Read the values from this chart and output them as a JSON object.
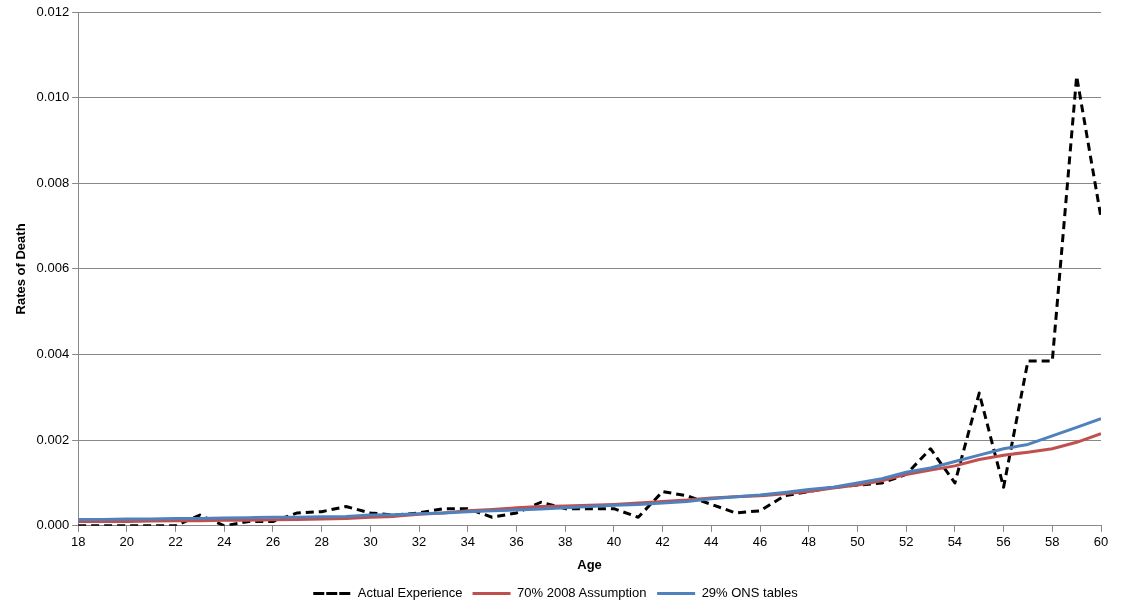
{
  "chart_data": {
    "type": "line",
    "xlabel": "Age",
    "ylabel": "Rates of Death",
    "x": [
      18,
      19,
      20,
      21,
      22,
      23,
      24,
      25,
      26,
      27,
      28,
      29,
      30,
      31,
      32,
      33,
      34,
      35,
      36,
      37,
      38,
      39,
      40,
      41,
      42,
      43,
      44,
      45,
      46,
      47,
      48,
      49,
      50,
      51,
      52,
      53,
      54,
      55,
      56,
      57,
      58,
      59,
      60
    ],
    "xlim": [
      18,
      60
    ],
    "xticks": [
      18,
      20,
      22,
      24,
      26,
      28,
      30,
      32,
      34,
      36,
      38,
      40,
      42,
      44,
      46,
      48,
      50,
      52,
      54,
      56,
      58,
      60
    ],
    "ylim": [
      0,
      0.012
    ],
    "yticks": [
      {
        "value": 0,
        "label": "0.000"
      },
      {
        "value": 0.002,
        "label": "0.002"
      },
      {
        "value": 0.004,
        "label": "0.004"
      },
      {
        "value": 0.006,
        "label": "0.006"
      },
      {
        "value": 0.008,
        "label": "0.008"
      },
      {
        "value": 0.01,
        "label": "0.010"
      },
      {
        "value": 0.012,
        "label": "0.012"
      }
    ],
    "grid": "y",
    "legend": "bottom",
    "marker": "none",
    "series": [
      {
        "name": "Actual Experience",
        "color": "#000000",
        "line_style": "dashed",
        "values": [
          0,
          0,
          0,
          0,
          0,
          0.00025,
          0,
          0.0001,
          0.0001,
          0.0003,
          0.00033,
          0.00045,
          0.0003,
          0.00025,
          0.0003,
          0.0004,
          0.0004,
          0.0002,
          0.0003,
          0.00055,
          0.0004,
          0.0004,
          0.0004,
          0.0002,
          0.0008,
          0.0007,
          0.0005,
          0.0003,
          0.00035,
          0.0007,
          0.0008,
          0.0009,
          0.00095,
          0.001,
          0.0012,
          0.0018,
          0.001,
          0.0031,
          0.0009,
          0.00385,
          0.00385,
          0.0105,
          0.0072
        ]
      },
      {
        "name": "70% 2008 Assumption",
        "color": "#c0504d",
        "line_style": "solid",
        "values": [
          0.0001,
          0.0001,
          0.0001,
          0.00011,
          0.00012,
          0.00012,
          0.00013,
          0.00013,
          0.00014,
          0.00015,
          0.00016,
          0.00017,
          0.0002,
          0.00022,
          0.00027,
          0.0003,
          0.00035,
          0.00038,
          0.00042,
          0.00045,
          0.00046,
          0.00048,
          0.0005,
          0.00053,
          0.00057,
          0.0006,
          0.00065,
          0.00068,
          0.0007,
          0.00075,
          0.0008,
          0.00088,
          0.00095,
          0.00105,
          0.0012,
          0.0013,
          0.0014,
          0.00155,
          0.00165,
          0.00172,
          0.0018,
          0.00195,
          0.00215
        ]
      },
      {
        "name": "29% ONS tables",
        "color": "#4f81bd",
        "line_style": "solid",
        "values": [
          0.00015,
          0.00015,
          0.00016,
          0.00016,
          0.00017,
          0.00017,
          0.00018,
          0.00019,
          0.0002,
          0.0002,
          0.00021,
          0.00022,
          0.00025,
          0.00026,
          0.00028,
          0.0003,
          0.00033,
          0.00035,
          0.00037,
          0.00039,
          0.00042,
          0.00045,
          0.00048,
          0.0005,
          0.00053,
          0.00057,
          0.00063,
          0.00068,
          0.00072,
          0.00078,
          0.00085,
          0.0009,
          0.001,
          0.0011,
          0.00125,
          0.00135,
          0.0015,
          0.00165,
          0.0018,
          0.0019,
          0.0021,
          0.0023,
          0.0025
        ]
      }
    ]
  }
}
